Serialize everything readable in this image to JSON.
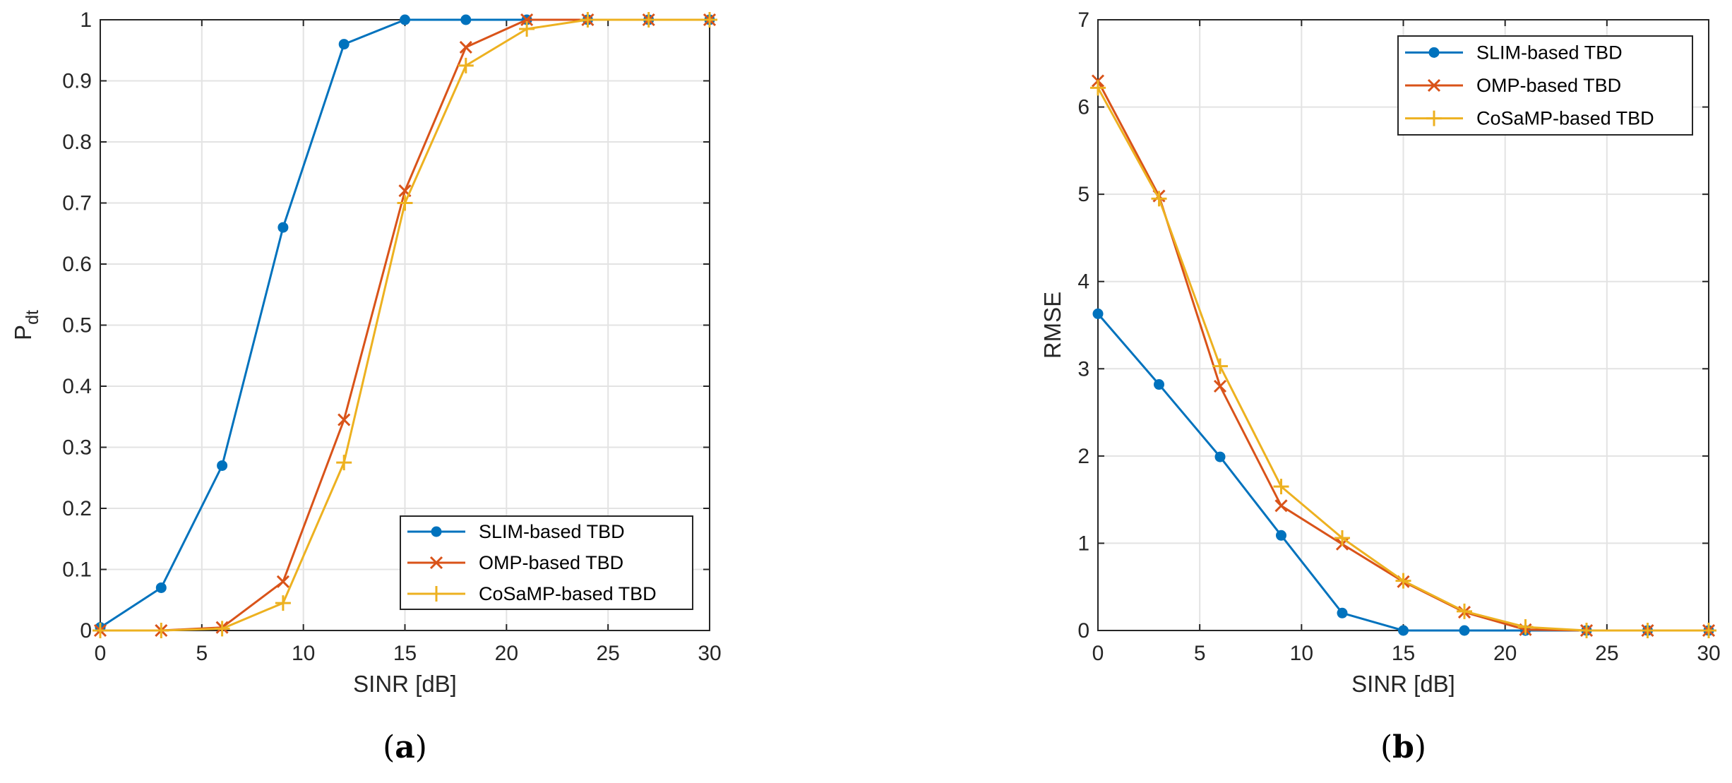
{
  "colors": {
    "slim": "#0072BD",
    "omp": "#D95319",
    "cosamp": "#EDB120",
    "grid": "#E3E3E3",
    "axis": "#262626"
  },
  "chart_data": [
    {
      "id": "a",
      "type": "line",
      "panel_label": {
        "open": "(",
        "letter": "a",
        "close": ")"
      },
      "xlabel": "SINR [dB]",
      "ylabel": "P",
      "ylabel_sub": "dt",
      "xlim": [
        0,
        30
      ],
      "ylim": [
        0,
        1
      ],
      "xticks": [
        0,
        5,
        10,
        15,
        20,
        25,
        30
      ],
      "yticks": [
        0,
        0.1,
        0.2,
        0.3,
        0.4,
        0.5,
        0.6,
        0.7,
        0.8,
        0.9,
        1
      ],
      "ytick_labels": [
        "0",
        "0.1",
        "0.2",
        "0.3",
        "0.4",
        "0.5",
        "0.6",
        "0.7",
        "0.8",
        "0.9",
        "1"
      ],
      "grid": true,
      "legend_position": "bottom-right",
      "x": [
        0,
        3,
        6,
        9,
        12,
        15,
        18,
        21,
        24,
        27,
        30
      ],
      "series": [
        {
          "name": "SLIM-based TBD",
          "marker": "dot",
          "color": "#0072BD",
          "values": [
            0.005,
            0.07,
            0.27,
            0.66,
            0.96,
            1,
            1,
            1,
            1,
            1,
            1
          ]
        },
        {
          "name": "OMP-based TBD",
          "marker": "x",
          "color": "#D95319",
          "values": [
            0,
            0,
            0.005,
            0.08,
            0.345,
            0.72,
            0.955,
            1,
            1,
            1,
            1
          ]
        },
        {
          "name": "CoSaMP-based TBD",
          "marker": "plus",
          "color": "#EDB120",
          "values": [
            0,
            0,
            0.003,
            0.045,
            0.275,
            0.7,
            0.925,
            0.985,
            1,
            1,
            1
          ]
        }
      ]
    },
    {
      "id": "b",
      "type": "line",
      "panel_label": {
        "open": "(",
        "letter": "b",
        "close": ")"
      },
      "xlabel": "SINR [dB]",
      "ylabel": "RMSE",
      "ylabel_sub": "",
      "xlim": [
        0,
        30
      ],
      "ylim": [
        0,
        7
      ],
      "xticks": [
        0,
        5,
        10,
        15,
        20,
        25,
        30
      ],
      "yticks": [
        0,
        1,
        2,
        3,
        4,
        5,
        6,
        7
      ],
      "ytick_labels": [
        "0",
        "1",
        "2",
        "3",
        "4",
        "5",
        "6",
        "7"
      ],
      "grid": true,
      "legend_position": "top-right",
      "x": [
        0,
        3,
        6,
        9,
        12,
        15,
        18,
        21,
        24,
        27,
        30
      ],
      "series": [
        {
          "name": "SLIM-based TBD",
          "marker": "dot",
          "color": "#0072BD",
          "values": [
            3.63,
            2.82,
            1.99,
            1.09,
            0.2,
            0.0,
            0.0,
            0.0,
            0.0,
            0.0,
            0.0
          ]
        },
        {
          "name": "OMP-based TBD",
          "marker": "x",
          "color": "#D95319",
          "values": [
            6.3,
            4.98,
            2.8,
            1.43,
            0.99,
            0.56,
            0.21,
            0.01,
            0.0,
            0.0,
            0.0
          ]
        },
        {
          "name": "CoSaMP-based TBD",
          "marker": "plus",
          "color": "#EDB120",
          "values": [
            6.22,
            4.95,
            3.03,
            1.65,
            1.06,
            0.57,
            0.22,
            0.04,
            0.0,
            0.0,
            0.0
          ]
        }
      ]
    }
  ]
}
